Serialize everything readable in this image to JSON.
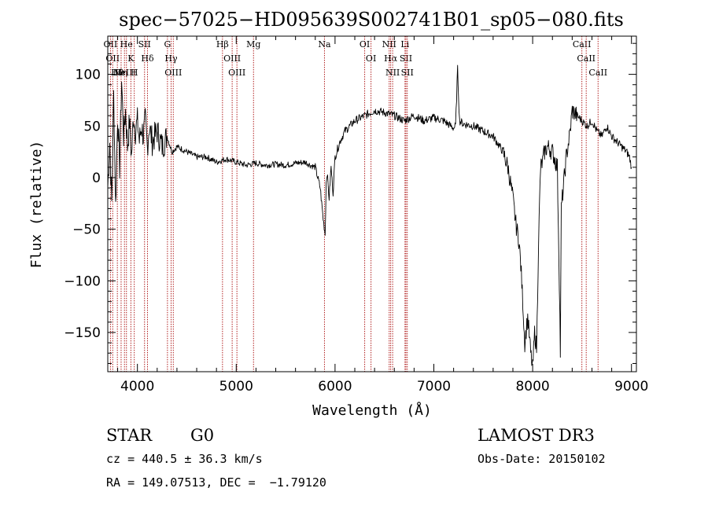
{
  "chart_data": {
    "type": "line",
    "title": "spec−57025−HD095639S002741B01_sp05−080.fits",
    "xlabel": "Wavelength (Å)",
    "ylabel": "Flux (relative)",
    "xlim": [
      3700,
      9050
    ],
    "ylim": [
      -188,
      137
    ],
    "x_ticks": [
      4000,
      5000,
      6000,
      7000,
      8000,
      9000
    ],
    "x_tick_labels": [
      "4000",
      "5000",
      "6000",
      "7000",
      "8000",
      "9000"
    ],
    "x_minor_step": 200,
    "y_ticks": [
      100,
      50,
      0,
      -50,
      -100,
      -150
    ],
    "y_tick_labels": [
      "100",
      "50",
      "0",
      "−50",
      "−100",
      "−150"
    ],
    "y_minor_step": 10,
    "grid": false,
    "legend": "none",
    "line_color": "#000000",
    "marker_color": "#b22222",
    "series": [
      {
        "x": [
          3700,
          3720,
          3740,
          3760,
          3780,
          3800,
          3820,
          3840,
          3860,
          3880,
          3900,
          3920,
          3940,
          3960,
          3980,
          4000,
          4020,
          4040,
          4060,
          4080,
          4100,
          4120,
          4150,
          4200,
          4250,
          4300,
          4350,
          4400,
          4500,
          4600,
          4700,
          4800,
          4900,
          5000,
          5100,
          5200,
          5300,
          5400,
          5500,
          5600,
          5700,
          5750,
          5800,
          5850,
          5880,
          5900,
          5910,
          5920,
          5940,
          5960,
          5980,
          6000,
          6050,
          6100,
          6200,
          6300,
          6400,
          6500,
          6600,
          6700,
          6800,
          6900,
          7000,
          7100,
          7200,
          7220,
          7240,
          7260,
          7300,
          7400,
          7500,
          7600,
          7700,
          7750,
          7800,
          7830,
          7860,
          7880,
          7900,
          7920,
          7950,
          7980,
          8000,
          8020,
          8040,
          8060,
          8080,
          8100,
          8120,
          8150,
          8200,
          8250,
          8270,
          8280,
          8290,
          8310,
          8340,
          8380,
          8400,
          8450,
          8500,
          8550,
          8600,
          8650,
          8700,
          8750,
          8800,
          8850,
          8900,
          8950,
          8980,
          9000
        ],
        "y": [
          -10,
          35,
          -25,
          80,
          -28,
          60,
          10,
          95,
          40,
          65,
          30,
          55,
          20,
          60,
          45,
          55,
          35,
          50,
          40,
          55,
          30,
          50,
          35,
          45,
          30,
          40,
          25,
          30,
          25,
          20,
          20,
          15,
          18,
          15,
          12,
          14,
          12,
          13,
          12,
          14,
          15,
          12,
          10,
          -10,
          -40,
          -55,
          -5,
          5,
          -20,
          10,
          -15,
          20,
          35,
          45,
          55,
          60,
          65,
          63,
          60,
          55,
          60,
          55,
          58,
          55,
          48,
          50,
          105,
          55,
          52,
          50,
          45,
          40,
          25,
          10,
          -20,
          -45,
          -60,
          -85,
          -120,
          -160,
          -135,
          -170,
          -185,
          -150,
          -165,
          -60,
          10,
          15,
          25,
          30,
          25,
          10,
          -100,
          -170,
          -30,
          -10,
          20,
          45,
          65,
          60,
          55,
          50,
          55,
          45,
          40,
          50,
          40,
          35,
          30,
          25,
          20,
          10
        ]
      }
    ],
    "lines": [
      {
        "x": 3727,
        "label": "OII"
      },
      {
        "x": 3750,
        "label": "OII"
      },
      {
        "x": 3797,
        "label": "Hθ"
      },
      {
        "x": 3835,
        "label": "Hη"
      },
      {
        "x": 3869,
        "label": "NeIII"
      },
      {
        "x": 3889,
        "label": "He"
      },
      {
        "x": 3934,
        "label": "K"
      },
      {
        "x": 3968,
        "label": "H"
      },
      {
        "x": 4072,
        "label": "SII"
      },
      {
        "x": 4102,
        "label": "Hδ"
      },
      {
        "x": 4304,
        "label": "G"
      },
      {
        "x": 4341,
        "label": "Hγ"
      },
      {
        "x": 4363,
        "label": "OIII"
      },
      {
        "x": 4861,
        "label": "Hβ"
      },
      {
        "x": 4959,
        "label": "OIII"
      },
      {
        "x": 5007,
        "label": "OIII"
      },
      {
        "x": 5175,
        "label": "Mg"
      },
      {
        "x": 5893,
        "label": "Na"
      },
      {
        "x": 6300,
        "label": "OI"
      },
      {
        "x": 6364,
        "label": "OI"
      },
      {
        "x": 6548,
        "label": "NII"
      },
      {
        "x": 6563,
        "label": "Hα"
      },
      {
        "x": 6583,
        "label": "NII"
      },
      {
        "x": 6708,
        "label": "Li"
      },
      {
        "x": 6717,
        "label": "SII"
      },
      {
        "x": 6731,
        "label": "SII"
      },
      {
        "x": 8498,
        "label": "CaII"
      },
      {
        "x": 8542,
        "label": "CaII"
      },
      {
        "x": 8662,
        "label": "CaII"
      }
    ]
  },
  "info": {
    "object_class": "STAR",
    "subclass": "G0",
    "survey": "LAMOST DR3",
    "redshift": "cz = 440.5 ± 36.3 km/s",
    "obs_date": "Obs-Date: 20150102",
    "coords": "RA = 149.07513, DEC =  −1.79120"
  }
}
